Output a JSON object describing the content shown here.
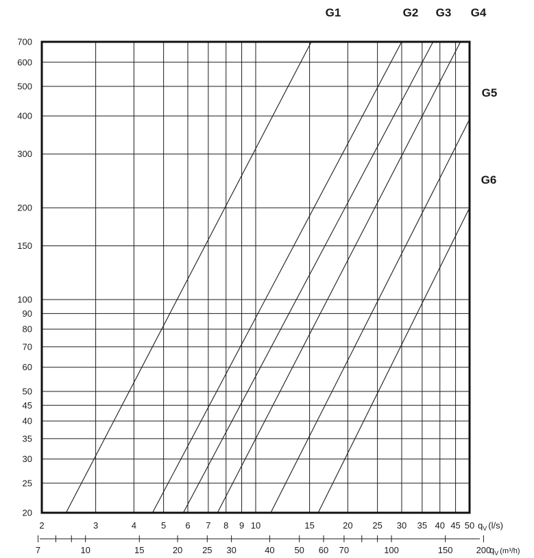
{
  "chart_data": {
    "type": "line",
    "title": "",
    "x_scale": "log",
    "y_scale": "log",
    "grid": true,
    "xlim": [
      2,
      50
    ],
    "ylim": [
      20,
      700
    ],
    "x_ticks_ls": [
      2,
      3,
      4,
      5,
      6,
      7,
      8,
      9,
      10,
      15,
      20,
      25,
      30,
      35,
      40,
      45,
      50
    ],
    "x_tick_labels_ls": [
      "2",
      "3",
      "4",
      "5",
      "6",
      "7",
      "8",
      "9",
      "10",
      "15",
      "20",
      "25",
      "30",
      "35",
      "40",
      "45",
      "50"
    ],
    "xlabel_ls": "q",
    "xlabel_ls_sub": "V",
    "xlabel_ls_unit": "(l/s)",
    "x_ticks_m3h": [
      7,
      10,
      15,
      20,
      25,
      30,
      40,
      50,
      60,
      70,
      100,
      150,
      200
    ],
    "x_tick_labels_m3h": [
      "7",
      "10",
      "15",
      "20",
      "25",
      "30",
      "40",
      "50",
      "60",
      "70",
      "100",
      "150",
      "200"
    ],
    "x_minor_ticks_m3h": [
      8,
      9,
      80,
      90
    ],
    "xlabel_m3h": "q",
    "xlabel_m3h_sub": "V",
    "xlabel_m3h_unit": "(m³/h)",
    "y_ticks": [
      20,
      25,
      30,
      35,
      40,
      45,
      50,
      60,
      70,
      80,
      90,
      100,
      150,
      200,
      300,
      400,
      500,
      600,
      700
    ],
    "y_tick_labels": [
      "20",
      "25",
      "30",
      "35",
      "40",
      "45",
      "50",
      "60",
      "70",
      "80",
      "90",
      "100",
      "150",
      "200",
      "300",
      "400",
      "500",
      "600",
      "700"
    ],
    "series": [
      {
        "name": "G1",
        "x": [
          2.4,
          15.2
        ],
        "y": [
          20,
          700
        ]
      },
      {
        "name": "G2",
        "x": [
          4.6,
          30.0
        ],
        "y": [
          20,
          700
        ]
      },
      {
        "name": "G3",
        "x": [
          5.8,
          38.0
        ],
        "y": [
          20,
          700
        ]
      },
      {
        "name": "G4",
        "x": [
          7.5,
          46.7
        ],
        "y": [
          20,
          700
        ]
      },
      {
        "name": "G5",
        "x": [
          11.2,
          50.0
        ],
        "y": [
          20,
          390
        ]
      },
      {
        "name": "G6",
        "x": [
          16.0,
          50.0
        ],
        "y": [
          20,
          200
        ]
      }
    ]
  }
}
